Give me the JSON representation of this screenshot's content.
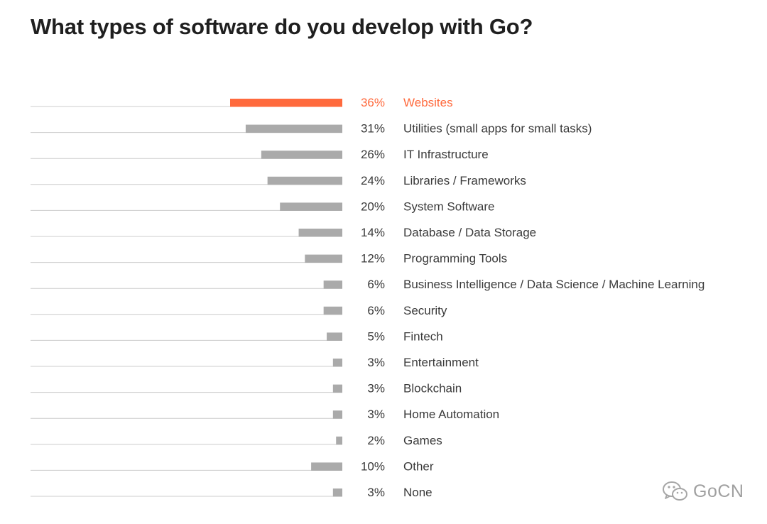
{
  "chart_data": {
    "type": "bar",
    "orientation": "horizontal",
    "title": "What types of software do you develop with Go?",
    "categories": [
      "Websites",
      "Utilities (small apps for small tasks)",
      "IT Infrastructure",
      "Libraries / Frameworks",
      "System Software",
      "Database / Data Storage",
      "Programming Tools",
      "Business Intelligence / Data Science / Machine Learning",
      "Security",
      "Fintech",
      "Entertainment",
      "Blockchain",
      "Home Automation",
      "Games",
      "Other",
      "None"
    ],
    "values": [
      36,
      31,
      26,
      24,
      20,
      14,
      12,
      6,
      6,
      5,
      3,
      3,
      3,
      2,
      10,
      3
    ],
    "value_labels": [
      "36%",
      "31%",
      "26%",
      "24%",
      "20%",
      "14%",
      "12%",
      "6%",
      "6%",
      "5%",
      "3%",
      "3%",
      "3%",
      "2%",
      "10%",
      "3%"
    ],
    "xlim": [
      0,
      100
    ],
    "highlight_index": 0,
    "colors": {
      "highlight": "#ff6a3d",
      "bar": "#aaaaaa",
      "baseline": "#cccccc",
      "text": "#3a3a3a"
    },
    "grid": false,
    "legend": "none"
  },
  "watermark": {
    "icon": "wechat-icon",
    "text": "GoCN"
  }
}
